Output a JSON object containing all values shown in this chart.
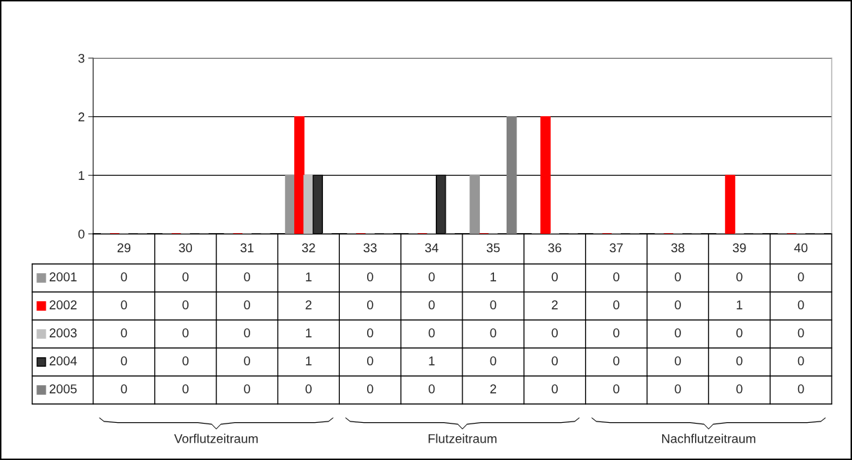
{
  "chart_data": {
    "type": "bar",
    "categories": [
      "29",
      "30",
      "31",
      "32",
      "33",
      "34",
      "35",
      "36",
      "37",
      "38",
      "39",
      "40"
    ],
    "series": [
      {
        "name": "2001",
        "color": "#969696",
        "values": [
          0,
          0,
          0,
          1,
          0,
          0,
          1,
          0,
          0,
          0,
          0,
          0
        ]
      },
      {
        "name": "2002",
        "color": "#ff0000",
        "values": [
          0,
          0,
          0,
          2,
          0,
          0,
          0,
          2,
          0,
          0,
          1,
          0
        ]
      },
      {
        "name": "2003",
        "color": "#c0c0c0",
        "values": [
          0,
          0,
          0,
          1,
          0,
          0,
          0,
          0,
          0,
          0,
          0,
          0
        ]
      },
      {
        "name": "2004",
        "color": "#333333",
        "values": [
          0,
          0,
          0,
          1,
          0,
          1,
          0,
          0,
          0,
          0,
          0,
          0
        ]
      },
      {
        "name": "2005",
        "color": "#808080",
        "values": [
          0,
          0,
          0,
          0,
          0,
          0,
          2,
          0,
          0,
          0,
          0,
          0
        ]
      }
    ],
    "ylim": [
      0,
      3
    ],
    "yticks": [
      0,
      1,
      2,
      3
    ],
    "grid": "y",
    "data_labels": true,
    "legend": "left",
    "annotations": [
      "Vorflutzeitraum",
      "Flutzeitraum",
      "Nachflutzeitraum"
    ]
  }
}
